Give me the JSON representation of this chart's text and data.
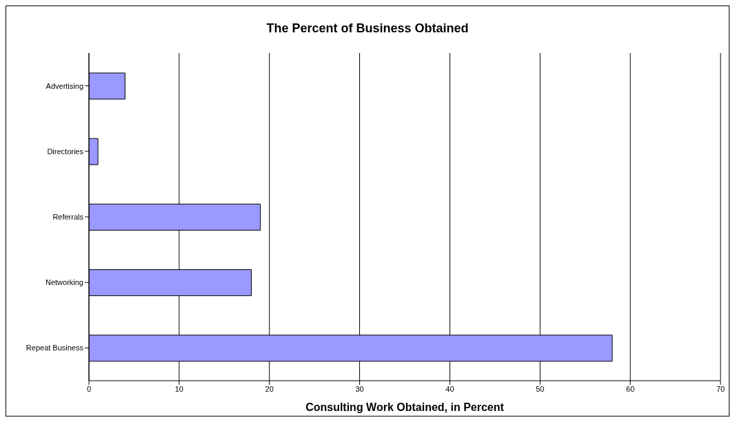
{
  "chart_data": {
    "type": "bar",
    "orientation": "horizontal",
    "title": "The Percent of Business Obtained",
    "xlabel": "Consulting Work Obtained, in Percent",
    "categories": [
      "Advertising",
      "Directories",
      "Referrals",
      "Networking",
      "Repeat Business"
    ],
    "values": [
      4,
      1,
      19,
      18,
      58
    ],
    "color": "#9999ff",
    "xlim": [
      0,
      70
    ],
    "xticks": [
      0,
      10,
      20,
      30,
      40,
      50,
      60,
      70
    ],
    "grid": "x",
    "legend": false
  }
}
